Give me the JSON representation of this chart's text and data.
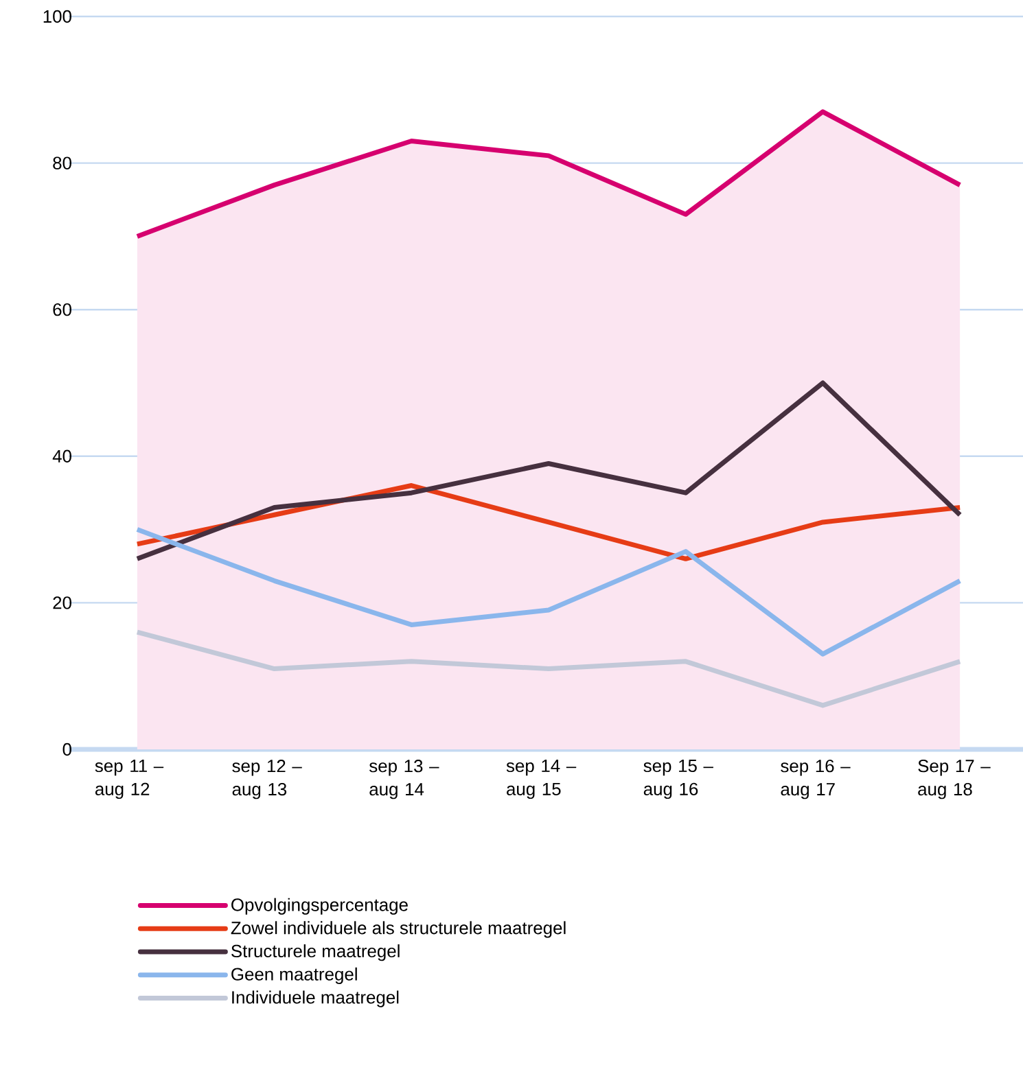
{
  "chart_data": {
    "type": "line",
    "categories": [
      "sep 11 – aug 12",
      "sep 12 – aug 13",
      "sep 13 – aug 14",
      "sep 14 – aug 15",
      "sep 15 – aug 16",
      "sep 16 – aug 17",
      "Sep 17 – aug 18"
    ],
    "series": [
      {
        "name": "Opvolgingspercentage",
        "type": "area",
        "color": "#d6006f",
        "values": [
          70,
          77,
          83,
          81,
          73,
          87,
          77
        ]
      },
      {
        "name": "Zowel individuele als structurele maatregel",
        "color": "#e63c16",
        "values": [
          28,
          32,
          36,
          31,
          26,
          31,
          33
        ]
      },
      {
        "name": "Structurele maatregel",
        "color": "#46303f",
        "values": [
          26,
          33,
          35,
          39,
          35,
          50,
          32
        ]
      },
      {
        "name": "Geen maatregel",
        "color": "#8ab6ec",
        "values": [
          30,
          23,
          17,
          19,
          27,
          13,
          23
        ]
      },
      {
        "name": "Individuele maatregel",
        "color": "#c2c8d8",
        "values": [
          16,
          11,
          12,
          11,
          12,
          6,
          12
        ]
      }
    ],
    "ylim": [
      0,
      100
    ],
    "yticks": [
      0,
      20,
      40,
      60,
      80,
      100
    ],
    "grid": "y",
    "legend": "bottom",
    "marker": "none",
    "line_style": "solid"
  }
}
